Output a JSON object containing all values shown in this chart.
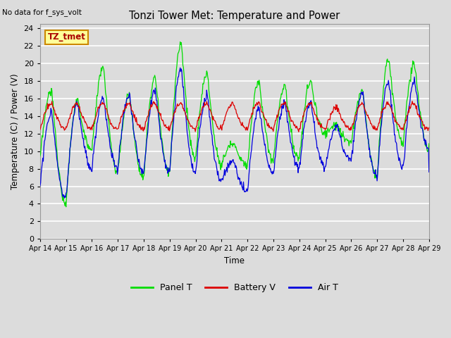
{
  "title": "Tonzi Tower Met: Temperature and Power",
  "top_left_text": "No data for f_sys_volt",
  "ylabel": "Temperature (C) / Power (V)",
  "xlabel": "Time",
  "yticks": [
    0,
    2,
    4,
    6,
    8,
    10,
    12,
    14,
    16,
    18,
    20,
    22,
    24
  ],
  "ylim": [
    0,
    24.5
  ],
  "xtick_labels": [
    "Apr 14",
    "Apr 15",
    "Apr 16",
    "Apr 17",
    "Apr 18",
    "Apr 19",
    "Apr 20",
    "Apr 21",
    "Apr 22",
    "Apr 23",
    "Apr 24",
    "Apr 25",
    "Apr 26",
    "Apr 27",
    "Apr 28",
    "Apr 29"
  ],
  "legend_entries": [
    "Panel T",
    "Battery V",
    "Air T"
  ],
  "legend_colors": [
    "#00dd00",
    "#dd0000",
    "#0000dd"
  ],
  "bg_color": "#e8e8e8",
  "box_label": "TZ_tmet",
  "box_bg": "#ffff99",
  "box_border": "#cc8800",
  "line_green_color": "#00dd00",
  "line_red_color": "#dd0000",
  "line_blue_color": "#0000dd"
}
